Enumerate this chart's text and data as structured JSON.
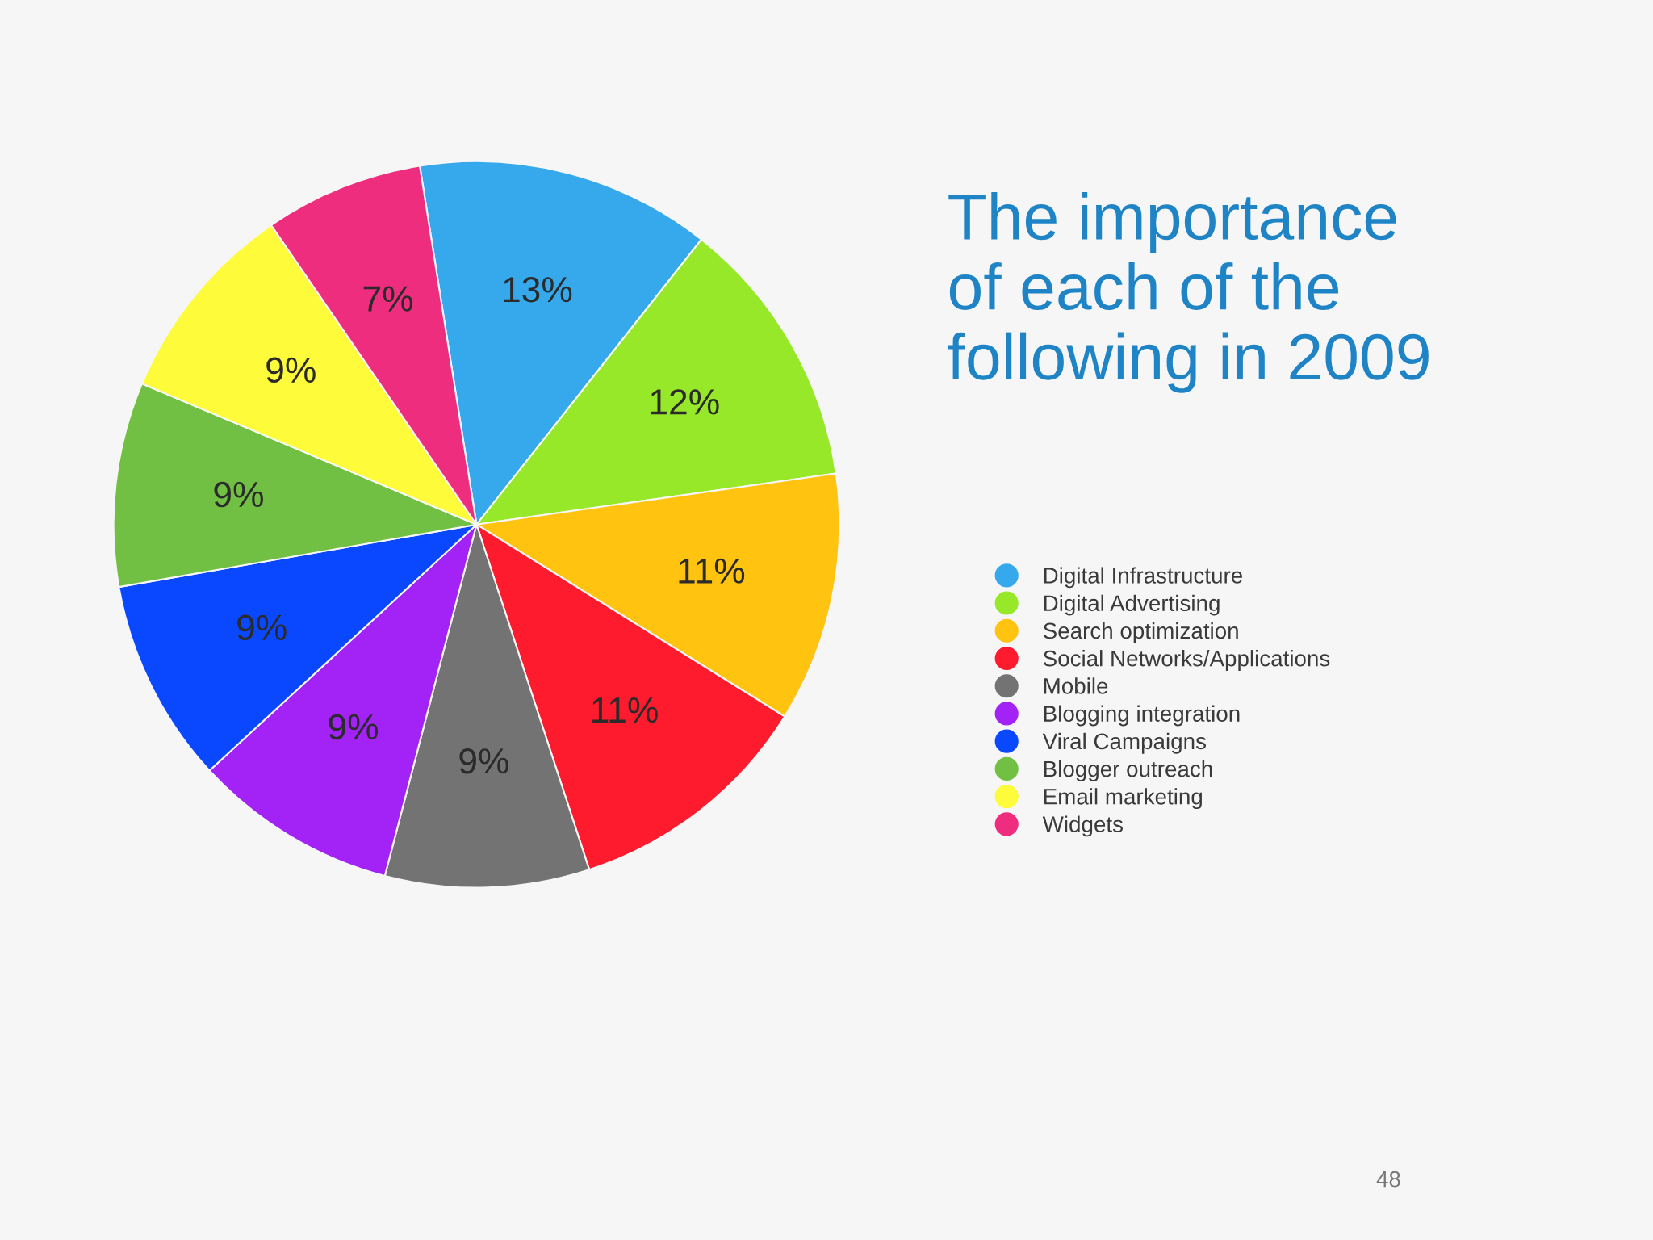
{
  "chart_data": {
    "type": "pie",
    "title": "The importance\nof each of the\nfollowing in 2009",
    "categories": [
      "Digital Infrastructure",
      "Digital Advertising",
      "Search optimization",
      "Social Networks/Applications",
      "Mobile",
      "Blogging integration",
      "Viral Campaigns",
      "Blogger outreach",
      "Email marketing",
      "Widgets"
    ],
    "values": [
      13,
      12,
      11,
      11,
      9,
      9,
      9,
      9,
      9,
      7
    ],
    "colors": [
      "#36a9ec",
      "#98e82a",
      "#ffc310",
      "#fe1b2d",
      "#737373",
      "#a322f5",
      "#0a48ff",
      "#72c043",
      "#fdfb3a",
      "#ee2d7e"
    ],
    "value_labels": [
      "13%",
      "12%",
      "11%",
      "11%",
      "9%",
      "9%",
      "9%",
      "9%",
      "9%",
      "7%"
    ],
    "legend": "right",
    "annotations": [
      "48"
    ]
  }
}
